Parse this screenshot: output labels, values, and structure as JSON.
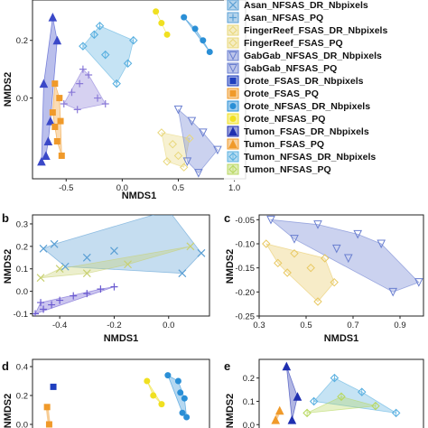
{
  "chart_data": [
    {
      "panel": "a",
      "type": "scatter",
      "xlabel": "NMDS1",
      "ylabel": "NMDS2",
      "xticks": [
        "-0.5",
        "0.0",
        "0.5",
        "1.0"
      ],
      "yticks": [
        "0.0",
        "0.2"
      ],
      "legend": [
        {
          "label": "Asan_NFSAS_DR_Nbpixels",
          "color": "#5a9fd4",
          "marker": "x"
        },
        {
          "label": "Asan_NFSAS_PQ",
          "color": "#5a9fd4",
          "marker": "plus"
        },
        {
          "label": "FingerReef_FSAS_DR_Nbpixels",
          "color": "#e8d77a",
          "marker": "diamond-open"
        },
        {
          "label": "FingerReef_FSAS_PQ",
          "color": "#e8d77a",
          "marker": "diamond-open"
        },
        {
          "label": "GabGab_NFSAS_DR_Nbpixels",
          "color": "#6a7fd0",
          "marker": "triangle-down-open"
        },
        {
          "label": "GabGab_NFSAS_PQ",
          "color": "#6a7fd0",
          "marker": "triangle-down-open"
        },
        {
          "label": "Orote_FSAS_DR_Nbpixels",
          "color": "#1f3fbf",
          "marker": "square"
        },
        {
          "label": "Orote_FSAS_PQ",
          "color": "#f09a2a",
          "marker": "square"
        },
        {
          "label": "Orote_NFSAS_DR_Nbpixels",
          "color": "#2a8fd6",
          "marker": "circle"
        },
        {
          "label": "Orote_NFSAS_PQ",
          "color": "#f0e020",
          "marker": "circle"
        },
        {
          "label": "Tumon_FSAS_DR_Nbpixels",
          "color": "#1f2fb0",
          "marker": "triangle"
        },
        {
          "label": "Tumon_FSAS_PQ",
          "color": "#f09a2a",
          "marker": "triangle"
        },
        {
          "label": "Tumon_NFSAS_DR_Nbpixels",
          "color": "#5ab0e0",
          "marker": "star-open"
        },
        {
          "label": "Tumon_NFSAS_PQ",
          "color": "#b8d860",
          "marker": "star-open"
        }
      ],
      "series": [
        {
          "name": "Tumon_FSAS",
          "color": "#3a48c8",
          "marker": "triangle",
          "x": [
            -0.72,
            -0.68,
            -0.64,
            -0.7,
            -0.62,
            -0.58,
            -0.66
          ],
          "y": [
            -0.22,
            -0.2,
            -0.08,
            0.05,
            0.28,
            0.2,
            -0.15
          ]
        },
        {
          "name": "Orote_FSAS",
          "color": "#f09a2a",
          "marker": "square",
          "x": [
            -0.62,
            -0.6,
            -0.56,
            -0.58,
            -0.54,
            -0.6,
            -0.55
          ],
          "y": [
            -0.05,
            -0.1,
            0.0,
            -0.15,
            -0.2,
            0.05,
            -0.08
          ]
        },
        {
          "name": "Asan_NFSAS",
          "color": "#8a7ad8",
          "marker": "plus",
          "x": [
            -0.52,
            -0.45,
            -0.38,
            -0.3,
            -0.22,
            -0.15,
            -0.4,
            -0.35
          ],
          "y": [
            -0.02,
            0.02,
            0.05,
            0.08,
            0.0,
            -0.02,
            -0.04,
            0.1
          ]
        },
        {
          "name": "Tumon_NFSAS",
          "color": "#5ab0e0",
          "marker": "star-open",
          "x": [
            -0.35,
            -0.25,
            -0.15,
            -0.05,
            0.05,
            0.1,
            -0.2
          ],
          "y": [
            0.18,
            0.22,
            0.15,
            0.05,
            0.12,
            0.2,
            0.25
          ]
        },
        {
          "name": "FingerReef_FSAS",
          "color": "#e8d77a",
          "marker": "diamond-open",
          "x": [
            0.35,
            0.45,
            0.5,
            0.6,
            0.55,
            0.4
          ],
          "y": [
            -0.12,
            -0.16,
            -0.2,
            -0.14,
            -0.24,
            -0.22
          ]
        },
        {
          "name": "GabGab_NFSAS",
          "color": "#6a7fd0",
          "marker": "triangle-down-open",
          "x": [
            0.5,
            0.62,
            0.72,
            0.85,
            0.58,
            0.68
          ],
          "y": [
            -0.04,
            -0.08,
            -0.12,
            -0.18,
            -0.22,
            -0.26
          ]
        },
        {
          "name": "Orote_NFSAS",
          "color": "#2a8fd6",
          "marker": "circle",
          "x": [
            0.55,
            0.65,
            0.72,
            0.78
          ],
          "y": [
            0.28,
            0.24,
            0.2,
            0.16
          ]
        },
        {
          "name": "Orote_NFSAS_PQ",
          "color": "#f0e020",
          "marker": "circle",
          "x": [
            0.3,
            0.35,
            0.4
          ],
          "y": [
            0.3,
            0.26,
            0.22
          ]
        }
      ]
    },
    {
      "panel": "b",
      "type": "scatter",
      "xlabel": "NMDS1",
      "ylabel": "NMDS2",
      "xlim": [
        -0.5,
        0.15
      ],
      "ylim": [
        -0.11,
        0.34
      ],
      "xticks": [
        "-0.4",
        "-0.2",
        "0.0"
      ],
      "yticks": [
        "-0.1",
        "0.0",
        "0.1",
        "0.2",
        "0.3"
      ],
      "series": [
        {
          "name": "Tumon_NFSAS",
          "color": "#5a9fd4",
          "marker": "x",
          "x": [
            -0.46,
            -0.42,
            -0.3,
            -0.2,
            0.0,
            0.12,
            0.05,
            -0.38
          ],
          "y": [
            0.19,
            0.21,
            0.15,
            0.18,
            0.36,
            0.17,
            0.08,
            0.11
          ]
        },
        {
          "name": "Tumon_NFSAS_PQ",
          "color": "#c8d070",
          "marker": "x",
          "x": [
            -0.47,
            -0.4,
            -0.3,
            -0.15,
            0.08
          ],
          "y": [
            0.06,
            0.1,
            0.08,
            0.12,
            0.2
          ]
        },
        {
          "name": "Asan_NFSAS",
          "color": "#6a5ad0",
          "marker": "plus",
          "x": [
            -0.49,
            -0.46,
            -0.43,
            -0.4,
            -0.35,
            -0.3,
            -0.25,
            -0.2,
            -0.47
          ],
          "y": [
            -0.1,
            -0.08,
            -0.06,
            -0.04,
            -0.02,
            -0.01,
            0.01,
            0.02,
            -0.05
          ]
        }
      ]
    },
    {
      "panel": "c",
      "type": "scatter",
      "xlabel": "NMDS1",
      "ylabel": "NMDS2",
      "xlim": [
        0.3,
        1.0
      ],
      "ylim": [
        -0.25,
        -0.04
      ],
      "xticks": [
        "0.3",
        "0.5",
        "0.7",
        "0.9"
      ],
      "yticks": [
        "-0.05",
        "-0.10",
        "-0.15",
        "-0.20",
        "-0.25"
      ],
      "series": [
        {
          "name": "FingerReef_FSAS",
          "color": "#e8c860",
          "marker": "diamond-open",
          "x": [
            0.33,
            0.38,
            0.45,
            0.52,
            0.58,
            0.55,
            0.62,
            0.42
          ],
          "y": [
            -0.1,
            -0.14,
            -0.12,
            -0.15,
            -0.13,
            -0.22,
            -0.18,
            -0.16
          ]
        },
        {
          "name": "GabGab_NFSAS",
          "color": "#6a7fd0",
          "marker": "triangle-down-open",
          "x": [
            0.35,
            0.45,
            0.55,
            0.63,
            0.72,
            0.82,
            0.87,
            0.98,
            0.68
          ],
          "y": [
            -0.05,
            -0.09,
            -0.06,
            -0.11,
            -0.08,
            -0.1,
            -0.2,
            -0.18,
            -0.13
          ]
        }
      ]
    },
    {
      "panel": "d",
      "type": "scatter",
      "ylabel": "NMDS2",
      "yticks": [
        "0.0",
        "0.2",
        "0.4"
      ],
      "series": [
        {
          "name": "Orote_FSAS_DR",
          "color": "#1f3fbf",
          "marker": "square",
          "x": [
            -0.6
          ],
          "y": [
            0.26
          ]
        },
        {
          "name": "Orote_FSAS_PQ",
          "color": "#f09a2a",
          "marker": "square",
          "x": [
            -0.66,
            -0.64
          ],
          "y": [
            0.12,
            0.0
          ]
        },
        {
          "name": "Orote_NFSAS_DR",
          "color": "#2a8fd6",
          "marker": "circle",
          "x": [
            0.5,
            0.6,
            0.62,
            0.66,
            0.64,
            0.68
          ],
          "y": [
            0.34,
            0.3,
            0.22,
            0.18,
            0.08,
            0.05
          ]
        },
        {
          "name": "Orote_NFSAS_PQ",
          "color": "#f0e020",
          "marker": "circle",
          "x": [
            0.3,
            0.36,
            0.44
          ],
          "y": [
            0.3,
            0.2,
            0.14
          ]
        }
      ]
    },
    {
      "panel": "e",
      "type": "scatter",
      "ylabel": "NMDS2",
      "yticks": [
        "0.0",
        "0.1",
        "0.2"
      ],
      "series": [
        {
          "name": "Tumon_FSAS_DR",
          "color": "#1f2fb0",
          "marker": "triangle",
          "x": [
            -0.5,
            -0.42,
            -0.46
          ],
          "y": [
            0.25,
            0.12,
            0.02
          ]
        },
        {
          "name": "Tumon_FSAS_PQ",
          "color": "#f09a2a",
          "marker": "triangle",
          "x": [
            -0.58,
            -0.55
          ],
          "y": [
            0.02,
            0.06
          ]
        },
        {
          "name": "Tumon_NFSAS_DR",
          "color": "#5ab0e0",
          "marker": "star-open",
          "x": [
            -0.3,
            -0.15,
            0.05,
            0.3
          ],
          "y": [
            0.1,
            0.2,
            0.14,
            0.05
          ]
        },
        {
          "name": "Tumon_NFSAS_PQ",
          "color": "#b8d860",
          "marker": "star-open",
          "x": [
            -0.35,
            -0.1,
            0.15
          ],
          "y": [
            0.05,
            0.12,
            0.08
          ]
        }
      ]
    }
  ]
}
